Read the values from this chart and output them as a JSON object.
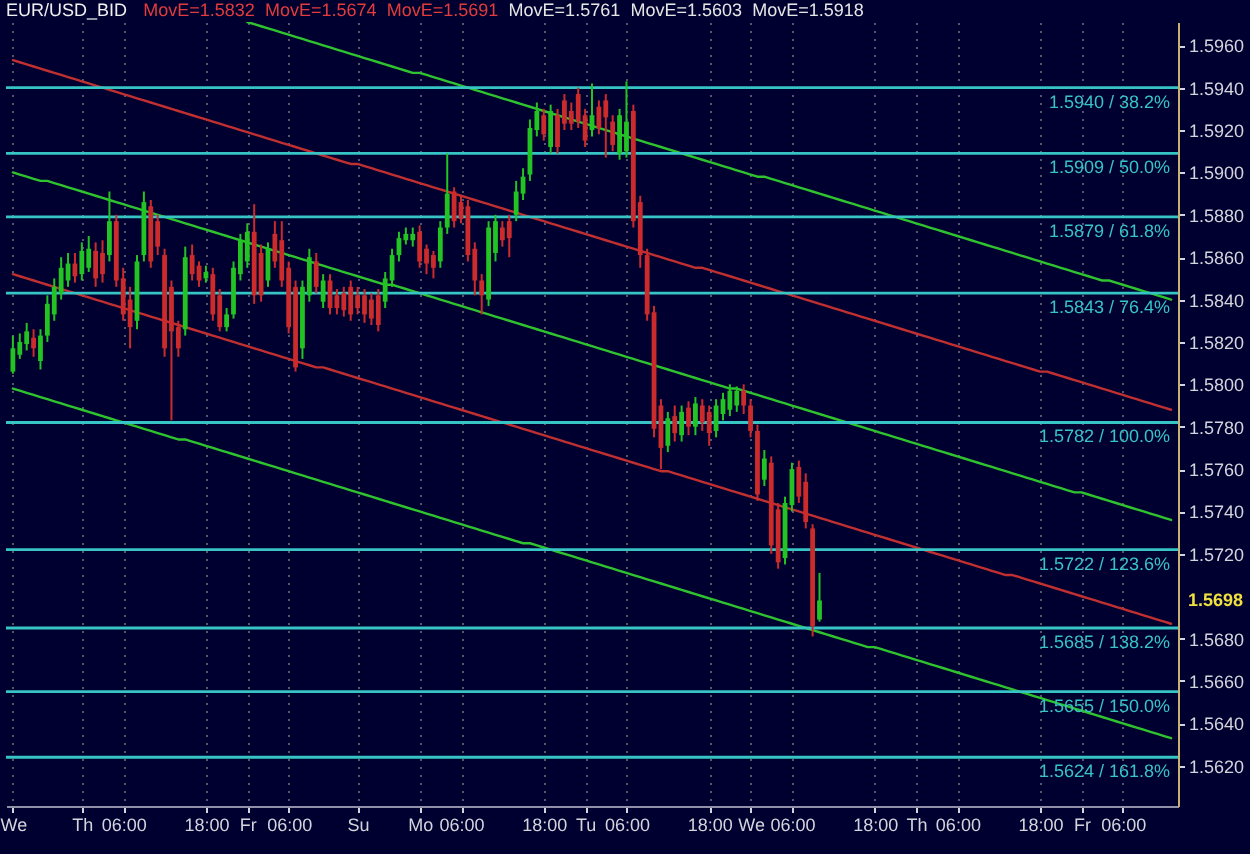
{
  "chart_data": {
    "type": "candlestick",
    "title": "EUR/USD_BID",
    "subtitle": "MovE=1.5832 MovE=1.5674 MovE=1.5691 MovE=1.5761 MovE=1.5603 MovE=1.5918",
    "annotations": [
      "1.5698"
    ],
    "categories": [
      "We",
      null,
      null,
      null,
      null,
      null,
      null,
      null,
      null,
      null,
      "Th",
      null,
      null,
      null,
      null,
      null,
      "06:00",
      null,
      null,
      null,
      null,
      null,
      null,
      null,
      null,
      null,
      null,
      null,
      "18:00",
      null,
      null,
      null,
      null,
      null,
      "Fr",
      null,
      null,
      null,
      null,
      null,
      "06:00",
      null,
      null,
      null,
      null,
      null,
      null,
      null,
      null,
      null,
      "Su",
      null,
      null,
      null,
      null,
      null,
      null,
      null,
      null,
      "Mo",
      null,
      null,
      null,
      null,
      null,
      "06:00",
      null,
      null,
      null,
      null,
      null,
      null,
      null,
      null,
      null,
      null,
      null,
      "18:00",
      null,
      null,
      null,
      null,
      null,
      "Tu",
      null,
      null,
      null,
      null,
      null,
      "06:00",
      null,
      null,
      null,
      null,
      null,
      null,
      null,
      null,
      null,
      null,
      null,
      "18:00",
      null,
      null,
      null,
      null,
      null,
      "We",
      null,
      null,
      null,
      null,
      null,
      "06:00",
      null,
      null,
      null,
      null,
      null,
      null,
      null,
      null,
      null,
      null,
      null,
      "18:00",
      null,
      null,
      null,
      null,
      null,
      "Th",
      null,
      null,
      null,
      null,
      null,
      "06:00",
      null,
      null,
      null,
      null,
      null,
      null,
      null,
      null,
      null,
      null,
      null,
      "18:00",
      null,
      null,
      null,
      null,
      null,
      "Fr",
      null,
      null,
      null,
      null,
      null,
      "06:00",
      null,
      null,
      null,
      null,
      null,
      null,
      null
    ],
    "ohlc": [
      [
        1.5806,
        1.5823,
        1.5805,
        1.5817
      ],
      [
        1.5814,
        1.5824,
        1.5812,
        1.582
      ],
      [
        1.5819,
        1.5829,
        1.5816,
        1.5825
      ],
      [
        1.5822,
        1.5826,
        1.5813,
        1.5817
      ],
      [
        1.5811,
        1.5826,
        1.5807,
        1.5823
      ],
      [
        1.5823,
        1.5842,
        1.582,
        1.5838
      ],
      [
        1.5833,
        1.585,
        1.583,
        1.5846
      ],
      [
        1.5843,
        1.586,
        1.584,
        1.5855
      ],
      [
        1.5849,
        1.5862,
        1.5846,
        1.5857
      ],
      [
        1.5857,
        1.5862,
        1.5848,
        1.5851
      ],
      [
        1.5852,
        1.5867,
        1.5849,
        1.5863
      ],
      [
        1.5855,
        1.587,
        1.5853,
        1.5864
      ],
      [
        1.5863,
        1.5867,
        1.5846,
        1.585
      ],
      [
        1.5862,
        1.5868,
        1.5848,
        1.5852
      ],
      [
        1.5861,
        1.5891,
        1.5858,
        1.5877
      ],
      [
        1.5877,
        1.588,
        1.5846,
        1.5849
      ],
      [
        1.585,
        1.5855,
        1.583,
        1.5833
      ],
      [
        1.584,
        1.5846,
        1.5817,
        1.5827
      ],
      [
        1.583,
        1.5861,
        1.5826,
        1.5858
      ],
      [
        1.5861,
        1.5891,
        1.5858,
        1.5886
      ],
      [
        1.5884,
        1.5887,
        1.5855,
        1.5858
      ],
      [
        1.5877,
        1.588,
        1.5861,
        1.5865
      ],
      [
        1.5861,
        1.5864,
        1.5813,
        1.5817
      ],
      [
        1.5846,
        1.5849,
        1.5783,
        1.5825
      ],
      [
        1.5827,
        1.583,
        1.5813,
        1.5817
      ],
      [
        1.5826,
        1.5865,
        1.5823,
        1.586
      ],
      [
        1.5861,
        1.5866,
        1.5849,
        1.5852
      ],
      [
        1.5856,
        1.5858,
        1.5846,
        1.5849
      ],
      [
        1.585,
        1.5856,
        1.5848,
        1.5853
      ],
      [
        1.5852,
        1.5855,
        1.583,
        1.5833
      ],
      [
        1.5842,
        1.5845,
        1.5825,
        1.5827
      ],
      [
        1.5827,
        1.5836,
        1.5825,
        1.5833
      ],
      [
        1.5833,
        1.5858,
        1.5831,
        1.5855
      ],
      [
        1.5852,
        1.5871,
        1.5849,
        1.5868
      ],
      [
        1.5858,
        1.5876,
        1.5855,
        1.5872
      ],
      [
        1.5872,
        1.5885,
        1.5838,
        1.5842
      ],
      [
        1.5862,
        1.5866,
        1.5839,
        1.5842
      ],
      [
        1.5849,
        1.5867,
        1.5846,
        1.5864
      ],
      [
        1.5871,
        1.5877,
        1.5855,
        1.5858
      ],
      [
        1.5868,
        1.5877,
        1.5846,
        1.5849
      ],
      [
        1.5855,
        1.5858,
        1.5824,
        1.5827
      ],
      [
        1.5846,
        1.5849,
        1.5806,
        1.5808
      ],
      [
        1.5817,
        1.5849,
        1.5812,
        1.5846
      ],
      [
        1.5842,
        1.5864,
        1.5839,
        1.586
      ],
      [
        1.5858,
        1.5862,
        1.5843,
        1.5846
      ],
      [
        1.5839,
        1.5852,
        1.5836,
        1.5849
      ],
      [
        1.5849,
        1.5852,
        1.5833,
        1.5836
      ],
      [
        1.5842,
        1.5845,
        1.5833,
        1.5836
      ],
      [
        1.5843,
        1.5846,
        1.5832,
        1.5835
      ],
      [
        1.5846,
        1.5849,
        1.583,
        1.5833
      ],
      [
        1.5842,
        1.5846,
        1.5833,
        1.5836
      ],
      [
        1.5842,
        1.5845,
        1.5829,
        1.5833
      ],
      [
        1.584,
        1.5843,
        1.5828,
        1.5831
      ],
      [
        1.5842,
        1.5845,
        1.5825,
        1.5828
      ],
      [
        1.5839,
        1.5853,
        1.5836,
        1.585
      ],
      [
        1.5849,
        1.5864,
        1.5846,
        1.5861
      ],
      [
        1.5861,
        1.5872,
        1.5858,
        1.5869
      ],
      [
        1.5868,
        1.5874,
        1.5866,
        1.5871
      ],
      [
        1.5868,
        1.5874,
        1.5865,
        1.5871
      ],
      [
        1.5872,
        1.5875,
        1.5855,
        1.5858
      ],
      [
        1.5864,
        1.5866,
        1.5852,
        1.5857
      ],
      [
        1.5861,
        1.5863,
        1.585,
        1.5855
      ],
      [
        1.5858,
        1.5877,
        1.5855,
        1.5874
      ],
      [
        1.5874,
        1.5909,
        1.5871,
        1.589
      ],
      [
        1.5891,
        1.5893,
        1.5874,
        1.5877
      ],
      [
        1.5886,
        1.5889,
        1.5876,
        1.5878
      ],
      [
        1.5884,
        1.5887,
        1.5858,
        1.5861
      ],
      [
        1.5864,
        1.5867,
        1.5842,
        1.5849
      ],
      [
        1.5849,
        1.5852,
        1.5833,
        1.5842
      ],
      [
        1.584,
        1.5877,
        1.5837,
        1.5874
      ],
      [
        1.5862,
        1.588,
        1.5858,
        1.5877
      ],
      [
        1.5874,
        1.5877,
        1.5865,
        1.5868
      ],
      [
        1.5877,
        1.588,
        1.586,
        1.5869
      ],
      [
        1.588,
        1.5896,
        1.5877,
        1.5891
      ],
      [
        1.589,
        1.5902,
        1.5887,
        1.5898
      ],
      [
        1.5899,
        1.5925,
        1.5896,
        1.5921
      ],
      [
        1.592,
        1.5933,
        1.5917,
        1.5929
      ],
      [
        1.5927,
        1.593,
        1.5915,
        1.5918
      ],
      [
        1.5912,
        1.5932,
        1.5909,
        1.5929
      ],
      [
        1.5927,
        1.593,
        1.5909,
        1.5912
      ],
      [
        1.5934,
        1.5937,
        1.592,
        1.5923
      ],
      [
        1.5929,
        1.5933,
        1.592,
        1.5923
      ],
      [
        1.5937,
        1.594,
        1.5921,
        1.5924
      ],
      [
        1.5927,
        1.593,
        1.5912,
        1.5915
      ],
      [
        1.592,
        1.5942,
        1.5917,
        1.5927
      ],
      [
        1.5931,
        1.5934,
        1.5918,
        1.5921
      ],
      [
        1.5934,
        1.5937,
        1.5907,
        1.5926
      ],
      [
        1.5924,
        1.5927,
        1.591,
        1.5913
      ],
      [
        1.5909,
        1.593,
        1.5906,
        1.5927
      ],
      [
        1.591,
        1.5943,
        1.5907,
        1.5924
      ],
      [
        1.5929,
        1.5932,
        1.5874,
        1.5877
      ],
      [
        1.5886,
        1.5889,
        1.5855,
        1.5861
      ],
      [
        1.5861,
        1.5864,
        1.583,
        1.5833
      ],
      [
        1.5834,
        1.5837,
        1.5775,
        1.5779
      ],
      [
        1.579,
        1.5793,
        1.576,
        1.577
      ],
      [
        1.5771,
        1.5787,
        1.5768,
        1.5784
      ],
      [
        1.5785,
        1.579,
        1.5773,
        1.5777
      ],
      [
        1.5776,
        1.579,
        1.5773,
        1.5787
      ],
      [
        1.5789,
        1.5792,
        1.5776,
        1.578
      ],
      [
        1.578,
        1.5794,
        1.5776,
        1.5791
      ],
      [
        1.579,
        1.5793,
        1.5778,
        1.5782
      ],
      [
        1.5787,
        1.579,
        1.5771,
        1.5777
      ],
      [
        1.5778,
        1.5793,
        1.5775,
        1.579
      ],
      [
        1.5786,
        1.5796,
        1.5783,
        1.5793
      ],
      [
        1.5788,
        1.58,
        1.5785,
        1.5797
      ],
      [
        1.579,
        1.5799,
        1.5787,
        1.5797
      ],
      [
        1.5797,
        1.58,
        1.5786,
        1.579
      ],
      [
        1.579,
        1.5793,
        1.5775,
        1.5778
      ],
      [
        1.5778,
        1.5781,
        1.5745,
        1.5748
      ],
      [
        1.5755,
        1.5769,
        1.5752,
        1.5765
      ],
      [
        1.5763,
        1.5766,
        1.572,
        1.5724
      ],
      [
        1.5741,
        1.5744,
        1.5713,
        1.5716
      ],
      [
        1.5718,
        1.5747,
        1.5715,
        1.5744
      ],
      [
        1.5743,
        1.5763,
        1.574,
        1.576
      ],
      [
        1.5761,
        1.5764,
        1.5744,
        1.5747
      ],
      [
        1.5754,
        1.5758,
        1.5732,
        1.5735
      ],
      [
        1.5732,
        1.5734,
        1.5681,
        1.5686
      ],
      [
        1.5689,
        1.5711,
        1.5688,
        1.5698
      ],
      null,
      null,
      null,
      null,
      null,
      null,
      null,
      null,
      null,
      null,
      null,
      null,
      null,
      null,
      null,
      null,
      null,
      null,
      null,
      null,
      null,
      null,
      null,
      null,
      null,
      null,
      null,
      null,
      null,
      null,
      null,
      null,
      null,
      null,
      null,
      null,
      null,
      null,
      null,
      null,
      null,
      null,
      null,
      null,
      null,
      null,
      null,
      null,
      null,
      null,
      null
    ],
    "colors": [
      "#22c322",
      "#22c322",
      "#22c322",
      "#cc2b2b",
      "#22c322",
      "#22c322",
      "#22c322",
      "#22c322",
      "#22c322",
      "#cc2b2b",
      "#22c322",
      "#22c322",
      "#cc2b2b",
      "#cc2b2b",
      "#22c322",
      "#cc2b2b",
      "#cc2b2b",
      "#cc2b2b",
      "#22c322",
      "#22c322",
      "#cc2b2b",
      "#cc2b2b",
      "#cc2b2b",
      "#cc2b2b",
      "#cc2b2b",
      "#22c322",
      "#cc2b2b",
      "#cc2b2b",
      "#22c322",
      "#cc2b2b",
      "#cc2b2b",
      "#22c322",
      "#22c322",
      "#22c322",
      "#22c322",
      "#cc2b2b",
      "#cc2b2b",
      "#22c322",
      "#cc2b2b",
      "#cc2b2b",
      "#cc2b2b",
      "#cc2b2b",
      "#22c322",
      "#22c322",
      "#cc2b2b",
      "#22c322",
      "#cc2b2b",
      "#cc2b2b",
      "#cc2b2b",
      "#cc2b2b",
      "#cc2b2b",
      "#cc2b2b",
      "#cc2b2b",
      "#cc2b2b",
      "#22c322",
      "#22c322",
      "#22c322",
      "#22c322",
      "#22c322",
      "#cc2b2b",
      "#cc2b2b",
      "#cc2b2b",
      "#22c322",
      "#22c322",
      "#cc2b2b",
      "#cc2b2b",
      "#cc2b2b",
      "#cc2b2b",
      "#cc2b2b",
      "#22c322",
      "#22c322",
      "#cc2b2b",
      "#cc2b2b",
      "#22c322",
      "#22c322",
      "#22c322",
      "#22c322",
      "#cc2b2b",
      "#22c322",
      "#cc2b2b",
      "#cc2b2b",
      "#cc2b2b",
      "#cc2b2b",
      "#cc2b2b",
      "#22c322",
      "#cc2b2b",
      "#cc2b2b",
      "#cc2b2b",
      "#22c322",
      "#22c322",
      "#cc2b2b",
      "#cc2b2b",
      "#cc2b2b",
      "#cc2b2b",
      "#cc2b2b",
      "#22c322",
      "#cc2b2b",
      "#22c322",
      "#cc2b2b",
      "#22c322",
      "#cc2b2b",
      "#cc2b2b",
      "#22c322",
      "#22c322",
      "#22c322",
      "#22c322",
      "#cc2b2b",
      "#cc2b2b",
      "#cc2b2b",
      "#22c322",
      "#cc2b2b",
      "#cc2b2b",
      "#22c322",
      "#22c322",
      "#cc2b2b",
      "#cc2b2b",
      "#cc2b2b",
      "#22c322",
      null,
      null,
      null,
      null,
      null,
      null,
      null,
      null,
      null,
      null,
      null,
      null,
      null,
      null,
      null,
      null,
      null,
      null,
      null,
      null,
      null,
      null,
      null,
      null,
      null,
      null,
      null,
      null,
      null,
      null,
      null,
      null,
      null,
      null,
      null,
      null,
      null,
      null,
      null,
      null,
      null,
      null,
      null,
      null,
      null,
      null,
      null,
      null,
      null,
      null,
      null
    ],
    "series": [
      {
        "type": "line",
        "color": "#2fc42f",
        "values": [
          null,
          null,
          null,
          null,
          null,
          null,
          null,
          null,
          null,
          null,
          null,
          null,
          null,
          null,
          null,
          null,
          null,
          null,
          null,
          null,
          null,
          null,
          null,
          null,
          null,
          null,
          null,
          null,
          null,
          null,
          null,
          null,
          null,
          null,
          1.5971,
          1.597,
          1.5969,
          1.5968,
          1.5967,
          1.5966,
          1.5965,
          1.5964,
          1.5963,
          1.5962,
          1.5961,
          1.596,
          1.5959,
          1.5958,
          1.5957,
          1.5956,
          1.5955,
          1.5954,
          1.5953,
          1.5952,
          1.5951,
          1.595,
          1.5949,
          1.5948,
          1.5947,
          1.5947,
          1.5946,
          1.5945,
          1.5944,
          1.5943,
          1.5942,
          1.5941,
          1.594,
          1.5939,
          1.5938,
          1.5937,
          1.5936,
          1.5935,
          1.5934,
          1.5933,
          1.5932,
          1.5931,
          1.593,
          1.5929,
          1.5928,
          1.5927,
          1.5926,
          1.5925,
          1.5924,
          1.5923,
          1.5922,
          1.5921,
          1.592,
          1.5919,
          1.5918,
          1.5917,
          1.5916,
          1.5915,
          1.5914,
          1.5913,
          1.5912,
          1.5911,
          1.591,
          1.5909,
          1.5908,
          1.5907,
          1.5906,
          1.5905,
          1.5904,
          1.5903,
          1.5902,
          1.5901,
          1.59,
          1.5899,
          1.5898,
          1.5898,
          1.5897,
          1.5896,
          1.5895,
          1.5894,
          1.5893,
          1.5892,
          1.5891,
          1.589,
          1.5889,
          1.5888,
          1.5887,
          1.5886,
          1.5885,
          1.5884,
          1.5883,
          1.5882,
          1.5881,
          1.588,
          1.5879,
          1.5878,
          1.5877,
          1.5876,
          1.5875,
          1.5874,
          1.5873,
          1.5872,
          1.5871,
          1.587,
          1.5869,
          1.5868,
          1.5867,
          1.5866,
          1.5865,
          1.5864,
          1.5863,
          1.5862,
          1.5861,
          1.586,
          1.5859,
          1.5858,
          1.5857,
          1.5856,
          1.5855,
          1.5854,
          1.5853,
          1.5852,
          1.5851,
          1.585,
          1.5849,
          1.5849,
          1.5848,
          1.5847,
          1.5846,
          1.5845,
          1.5844,
          1.5843,
          1.5842,
          1.5841,
          1.584
        ]
      },
      {
        "type": "line",
        "color": "#2fc42f",
        "values": [
          1.59,
          1.5899,
          1.5898,
          1.5897,
          1.5896,
          1.5896,
          1.5895,
          1.5894,
          1.5893,
          1.5892,
          1.5891,
          1.589,
          1.5889,
          1.5888,
          1.5887,
          1.5886,
          1.5885,
          1.5884,
          1.5883,
          1.5882,
          1.5881,
          1.588,
          1.5879,
          1.5878,
          1.5877,
          1.5876,
          1.5875,
          1.5874,
          1.5873,
          1.5872,
          1.5871,
          1.587,
          1.5869,
          1.5868,
          1.5867,
          1.5866,
          1.5865,
          1.5864,
          1.5863,
          1.5862,
          1.5861,
          1.586,
          1.5859,
          1.5858,
          1.5857,
          1.5856,
          1.5855,
          1.5854,
          1.5853,
          1.5852,
          1.5851,
          1.585,
          1.5849,
          1.5848,
          1.5847,
          1.5847,
          1.5846,
          1.5845,
          1.5844,
          1.5843,
          1.5842,
          1.5841,
          1.584,
          1.5839,
          1.5838,
          1.5837,
          1.5836,
          1.5835,
          1.5834,
          1.5833,
          1.5832,
          1.5831,
          1.583,
          1.5829,
          1.5828,
          1.5827,
          1.5826,
          1.5825,
          1.5824,
          1.5823,
          1.5822,
          1.5821,
          1.582,
          1.5819,
          1.5818,
          1.5817,
          1.5816,
          1.5815,
          1.5814,
          1.5813,
          1.5812,
          1.5811,
          1.581,
          1.5809,
          1.5808,
          1.5807,
          1.5806,
          1.5805,
          1.5804,
          1.5803,
          1.5802,
          1.5801,
          1.58,
          1.5799,
          1.5798,
          1.5798,
          1.5797,
          1.5796,
          1.5795,
          1.5794,
          1.5793,
          1.5792,
          1.5791,
          1.579,
          1.5789,
          1.5788,
          1.5787,
          1.5786,
          1.5785,
          1.5784,
          1.5783,
          1.5782,
          1.5781,
          1.578,
          1.5779,
          1.5778,
          1.5777,
          1.5776,
          1.5775,
          1.5774,
          1.5773,
          1.5772,
          1.5771,
          1.577,
          1.5769,
          1.5768,
          1.5767,
          1.5766,
          1.5765,
          1.5764,
          1.5763,
          1.5762,
          1.5761,
          1.576,
          1.5759,
          1.5758,
          1.5757,
          1.5756,
          1.5755,
          1.5754,
          1.5753,
          1.5752,
          1.5751,
          1.575,
          1.5749,
          1.5749,
          1.5748,
          1.5747,
          1.5746,
          1.5745,
          1.5744,
          1.5743,
          1.5742,
          1.5741,
          1.574,
          1.5739,
          1.5738,
          1.5737,
          1.5736
        ]
      },
      {
        "type": "line",
        "color": "#2fc42f",
        "values": [
          1.5798,
          1.5797,
          1.5796,
          1.5795,
          1.5794,
          1.5793,
          1.5792,
          1.5791,
          1.579,
          1.5789,
          1.5788,
          1.5787,
          1.5786,
          1.5785,
          1.5784,
          1.5783,
          1.5782,
          1.5781,
          1.578,
          1.5779,
          1.5778,
          1.5777,
          1.5776,
          1.5775,
          1.5774,
          1.5774,
          1.5773,
          1.5772,
          1.5771,
          1.577,
          1.5769,
          1.5768,
          1.5767,
          1.5766,
          1.5765,
          1.5764,
          1.5763,
          1.5762,
          1.5761,
          1.576,
          1.5759,
          1.5758,
          1.5757,
          1.5756,
          1.5755,
          1.5754,
          1.5753,
          1.5752,
          1.5751,
          1.575,
          1.5749,
          1.5748,
          1.5747,
          1.5746,
          1.5745,
          1.5744,
          1.5743,
          1.5742,
          1.5741,
          1.574,
          1.5739,
          1.5738,
          1.5737,
          1.5736,
          1.5735,
          1.5734,
          1.5733,
          1.5732,
          1.5731,
          1.573,
          1.5729,
          1.5728,
          1.5727,
          1.5726,
          1.5725,
          1.5725,
          1.5724,
          1.5723,
          1.5722,
          1.5721,
          1.572,
          1.5719,
          1.5718,
          1.5717,
          1.5716,
          1.5715,
          1.5714,
          1.5713,
          1.5712,
          1.5711,
          1.571,
          1.5709,
          1.5708,
          1.5707,
          1.5706,
          1.5705,
          1.5704,
          1.5703,
          1.5702,
          1.5701,
          1.57,
          1.5699,
          1.5698,
          1.5697,
          1.5696,
          1.5695,
          1.5694,
          1.5693,
          1.5692,
          1.5691,
          1.569,
          1.5689,
          1.5688,
          1.5687,
          1.5686,
          1.5685,
          1.5684,
          1.5683,
          1.5682,
          1.5681,
          1.568,
          1.5679,
          1.5678,
          1.5677,
          1.5676,
          1.5676,
          1.5675,
          1.5674,
          1.5673,
          1.5672,
          1.5671,
          1.567,
          1.5669,
          1.5668,
          1.5667,
          1.5666,
          1.5665,
          1.5664,
          1.5663,
          1.5662,
          1.5661,
          1.566,
          1.5659,
          1.5658,
          1.5657,
          1.5656,
          1.5655,
          1.5654,
          1.5653,
          1.5652,
          1.5651,
          1.565,
          1.5649,
          1.5648,
          1.5647,
          1.5646,
          1.5645,
          1.5644,
          1.5643,
          1.5642,
          1.5641,
          1.564,
          1.5639,
          1.5638,
          1.5637,
          1.5636,
          1.5635,
          1.5634,
          1.5633
        ]
      },
      {
        "type": "line",
        "color": "#c03030",
        "values": [
          1.5953,
          1.5952,
          1.5951,
          1.595,
          1.5949,
          1.5948,
          1.5947,
          1.5946,
          1.5945,
          1.5944,
          1.5943,
          1.5942,
          1.5941,
          1.594,
          1.5939,
          1.5938,
          1.5937,
          1.5936,
          1.5935,
          1.5934,
          1.5933,
          1.5932,
          1.5931,
          1.593,
          1.5929,
          1.5928,
          1.5927,
          1.5926,
          1.5925,
          1.5924,
          1.5923,
          1.5922,
          1.5921,
          1.592,
          1.5919,
          1.5918,
          1.5917,
          1.5916,
          1.5915,
          1.5914,
          1.5913,
          1.5912,
          1.5911,
          1.591,
          1.5909,
          1.5908,
          1.5907,
          1.5906,
          1.5905,
          1.5904,
          1.5904,
          1.5903,
          1.5902,
          1.5901,
          1.59,
          1.5899,
          1.5898,
          1.5897,
          1.5896,
          1.5895,
          1.5894,
          1.5893,
          1.5892,
          1.5891,
          1.589,
          1.5889,
          1.5888,
          1.5887,
          1.5886,
          1.5885,
          1.5884,
          1.5883,
          1.5882,
          1.5881,
          1.588,
          1.5879,
          1.5878,
          1.5877,
          1.5876,
          1.5875,
          1.5874,
          1.5873,
          1.5872,
          1.5871,
          1.587,
          1.5869,
          1.5868,
          1.5867,
          1.5866,
          1.5865,
          1.5864,
          1.5863,
          1.5862,
          1.5861,
          1.586,
          1.5859,
          1.5858,
          1.5857,
          1.5856,
          1.5855,
          1.5855,
          1.5854,
          1.5853,
          1.5852,
          1.5851,
          1.585,
          1.5849,
          1.5848,
          1.5847,
          1.5846,
          1.5845,
          1.5844,
          1.5843,
          1.5842,
          1.5841,
          1.584,
          1.5839,
          1.5838,
          1.5837,
          1.5836,
          1.5835,
          1.5834,
          1.5833,
          1.5832,
          1.5831,
          1.583,
          1.5829,
          1.5828,
          1.5827,
          1.5826,
          1.5825,
          1.5824,
          1.5823,
          1.5822,
          1.5821,
          1.582,
          1.5819,
          1.5818,
          1.5817,
          1.5816,
          1.5815,
          1.5814,
          1.5813,
          1.5812,
          1.5811,
          1.581,
          1.5809,
          1.5808,
          1.5807,
          1.5806,
          1.5806,
          1.5805,
          1.5804,
          1.5803,
          1.5802,
          1.5801,
          1.58,
          1.5799,
          1.5798,
          1.5797,
          1.5796,
          1.5795,
          1.5794,
          1.5793,
          1.5792,
          1.5791,
          1.579,
          1.5789,
          1.5788
        ]
      },
      {
        "type": "line",
        "color": "#c03030",
        "values": [
          1.5852,
          1.5851,
          1.585,
          1.5849,
          1.5848,
          1.5847,
          1.5846,
          1.5845,
          1.5844,
          1.5843,
          1.5842,
          1.5841,
          1.584,
          1.5839,
          1.5838,
          1.5837,
          1.5836,
          1.5835,
          1.5834,
          1.5833,
          1.5832,
          1.5831,
          1.583,
          1.5829,
          1.5828,
          1.5827,
          1.5826,
          1.5825,
          1.5824,
          1.5823,
          1.5822,
          1.5821,
          1.582,
          1.5819,
          1.5818,
          1.5817,
          1.5816,
          1.5815,
          1.5814,
          1.5813,
          1.5812,
          1.5811,
          1.581,
          1.5809,
          1.5808,
          1.5808,
          1.5807,
          1.5806,
          1.5805,
          1.5804,
          1.5803,
          1.5802,
          1.5801,
          1.58,
          1.5799,
          1.5798,
          1.5797,
          1.5796,
          1.5795,
          1.5794,
          1.5793,
          1.5792,
          1.5791,
          1.579,
          1.5789,
          1.5788,
          1.5787,
          1.5786,
          1.5785,
          1.5784,
          1.5783,
          1.5782,
          1.5781,
          1.578,
          1.5779,
          1.5778,
          1.5777,
          1.5776,
          1.5775,
          1.5774,
          1.5773,
          1.5772,
          1.5771,
          1.577,
          1.5769,
          1.5768,
          1.5767,
          1.5766,
          1.5765,
          1.5764,
          1.5763,
          1.5762,
          1.5761,
          1.576,
          1.5759,
          1.5759,
          1.5758,
          1.5757,
          1.5756,
          1.5755,
          1.5754,
          1.5753,
          1.5752,
          1.5751,
          1.575,
          1.5749,
          1.5748,
          1.5747,
          1.5746,
          1.5745,
          1.5744,
          1.5743,
          1.5742,
          1.5741,
          1.574,
          1.5739,
          1.5738,
          1.5737,
          1.5736,
          1.5735,
          1.5734,
          1.5733,
          1.5732,
          1.5731,
          1.573,
          1.5729,
          1.5728,
          1.5727,
          1.5726,
          1.5725,
          1.5724,
          1.5723,
          1.5722,
          1.5721,
          1.572,
          1.5719,
          1.5718,
          1.5717,
          1.5716,
          1.5715,
          1.5714,
          1.5713,
          1.5712,
          1.5711,
          1.571,
          1.571,
          1.5709,
          1.5708,
          1.5707,
          1.5706,
          1.5705,
          1.5704,
          1.5703,
          1.5702,
          1.5701,
          1.57,
          1.5699,
          1.5698,
          1.5697,
          1.5696,
          1.5695,
          1.5694,
          1.5693,
          1.5692,
          1.5691,
          1.569,
          1.5689,
          1.5688,
          1.5687
        ]
      }
    ],
    "ref_lines": [
      {
        "axis": "y",
        "value": 1.594,
        "label": "1.5940 / 38.2%",
        "color": "#36c4c4"
      },
      {
        "axis": "y",
        "value": 1.5909,
        "label": "1.5909 / 50.0%",
        "color": "#36c4c4"
      },
      {
        "axis": "y",
        "value": 1.5879,
        "label": "1.5879 / 61.8%",
        "color": "#36c4c4"
      },
      {
        "axis": "y",
        "value": 1.5843,
        "label": "1.5843 / 76.4%",
        "color": "#36c4c4"
      },
      {
        "axis": "y",
        "value": 1.5782,
        "label": "1.5782 / 100.0%",
        "color": "#36c4c4"
      },
      {
        "axis": "y",
        "value": 1.5722,
        "label": "1.5722 / 123.6%",
        "color": "#36c4c4"
      },
      {
        "axis": "y",
        "value": 1.5685,
        "label": "1.5685 / 138.2%",
        "color": "#36c4c4"
      },
      {
        "axis": "y",
        "value": 1.5655,
        "label": "1.5655 / 150.0%",
        "color": "#36c4c4"
      },
      {
        "axis": "y",
        "value": 1.5624,
        "label": "1.5624 / 161.8%",
        "color": "#36c4c4"
      }
    ],
    "ylim": [
      1.5601,
      1.5971
    ],
    "yticks": [
      {
        "value": 1.562,
        "label": "1.5620"
      },
      {
        "value": 1.564,
        "label": "1.5640"
      },
      {
        "value": 1.566,
        "label": "1.5660"
      },
      {
        "value": 1.568,
        "label": "1.5680"
      },
      {
        "value": 1.572,
        "label": "1.5720"
      },
      {
        "value": 1.574,
        "label": "1.5740"
      },
      {
        "value": 1.576,
        "label": "1.5760"
      },
      {
        "value": 1.578,
        "label": "1.5780"
      },
      {
        "value": 1.58,
        "label": "1.5800"
      },
      {
        "value": 1.582,
        "label": "1.5820"
      },
      {
        "value": 1.584,
        "label": "1.5840"
      },
      {
        "value": 1.586,
        "label": "1.5860"
      },
      {
        "value": 1.588,
        "label": "1.5880"
      },
      {
        "value": 1.59,
        "label": "1.5900"
      },
      {
        "value": 1.592,
        "label": "1.5920"
      },
      {
        "value": 1.594,
        "label": "1.5940"
      },
      {
        "value": 1.596,
        "label": "1.5960"
      }
    ],
    "grid": "x"
  }
}
